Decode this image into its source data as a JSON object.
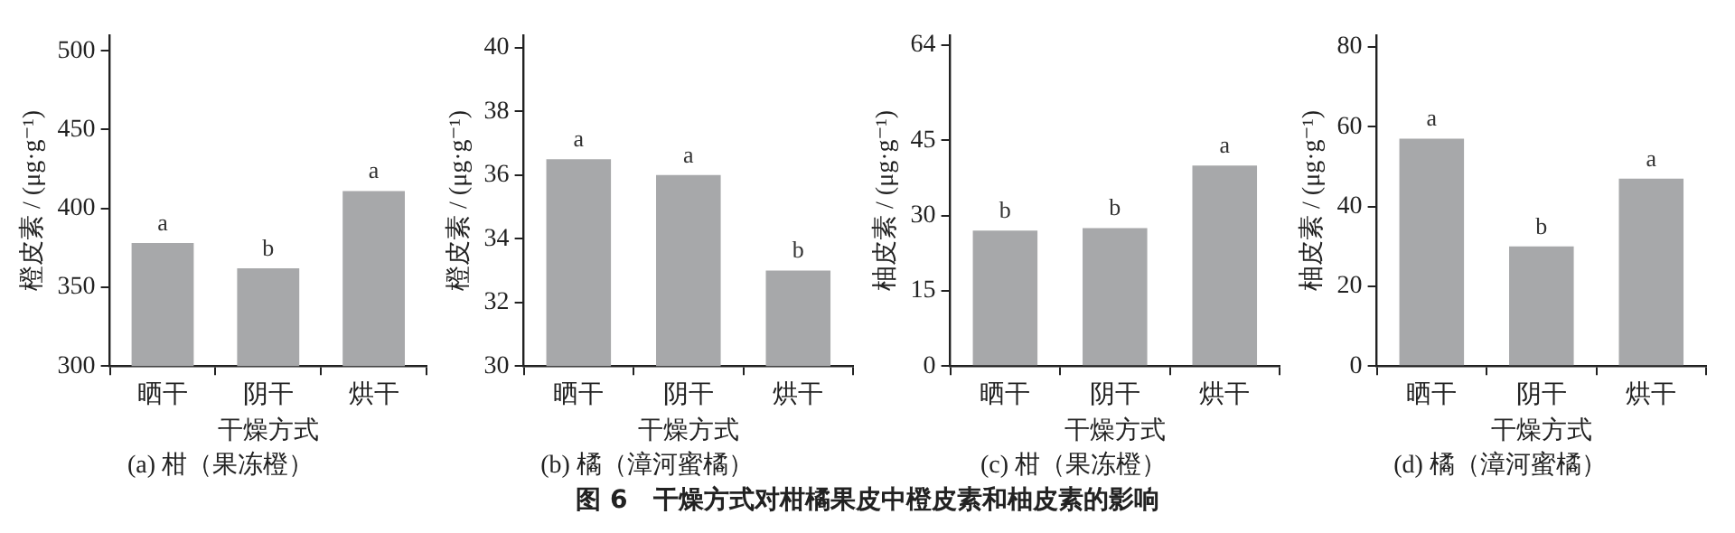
{
  "chart_data": [
    {
      "type": "bar",
      "title": "(a) 柑（果冻橙）",
      "xlabel": "干燥方式",
      "ylabel": "橙皮素 / (μg·g⁻¹)",
      "categories": [
        "晒干",
        "阴干",
        "烘干"
      ],
      "values": [
        378,
        362,
        411
      ],
      "color": "#a7a8aa",
      "ylim": [
        300,
        510
      ],
      "yticks": [
        300,
        350,
        400,
        450,
        500
      ],
      "grid": false,
      "annotations": [
        {
          "text": "a",
          "x": "晒干",
          "y": 378
        },
        {
          "text": "b",
          "x": "阴干",
          "y": 362
        },
        {
          "text": "a",
          "x": "烘干",
          "y": 411
        },
        "图 6　干燥方式对柑橘果皮中橙皮素和柚皮素的影响"
      ]
    },
    {
      "type": "bar",
      "title": "(b) 橘（漳河蜜橘）",
      "xlabel": "干燥方式",
      "ylabel": "橙皮素 / (μg·g⁻¹)",
      "categories": [
        "晒干",
        "阴干",
        "烘干"
      ],
      "values": [
        36.5,
        36.0,
        33.0
      ],
      "color": "#a7a8aa",
      "ylim": [
        30,
        40.4
      ],
      "yticks": [
        30,
        32,
        34,
        36,
        38,
        40
      ],
      "grid": false,
      "annotations": [
        {
          "text": "a",
          "x": "晒干",
          "y": 36.5
        },
        {
          "text": "a",
          "x": "阴干",
          "y": 36.0
        },
        {
          "text": "b",
          "x": "烘干",
          "y": 33.0
        }
      ]
    },
    {
      "type": "bar",
      "title": "(c) 柑（果冻橙）",
      "xlabel": "干燥方式",
      "ylabel": "柚皮素 / (μg·g⁻¹)",
      "categories": [
        "晒干",
        "阴干",
        "烘干"
      ],
      "values": [
        27,
        27.5,
        40
      ],
      "color": "#a7a8aa",
      "ylim": [
        0,
        66
      ],
      "yticks": [
        0,
        15,
        30,
        45,
        64
      ],
      "grid": false,
      "annotations": [
        {
          "text": "b",
          "x": "晒干",
          "y": 27
        },
        {
          "text": "b",
          "x": "阴干",
          "y": 27.5
        },
        {
          "text": "a",
          "x": "烘干",
          "y": 40
        }
      ]
    },
    {
      "type": "bar",
      "title": "(d) 橘（漳河蜜橘）",
      "xlabel": "干燥方式",
      "ylabel": "柚皮素 / (μg·g⁻¹)",
      "categories": [
        "晒干",
        "阴干",
        "烘干"
      ],
      "values": [
        57,
        30,
        47
      ],
      "color": "#a7a8aa",
      "ylim": [
        0,
        83
      ],
      "yticks": [
        0,
        20,
        40,
        60,
        80
      ],
      "grid": false,
      "annotations": [
        {
          "text": "a",
          "x": "晒干",
          "y": 57
        },
        {
          "text": "b",
          "x": "阴干",
          "y": 30
        },
        {
          "text": "a",
          "x": "烘干",
          "y": 47
        }
      ]
    }
  ]
}
